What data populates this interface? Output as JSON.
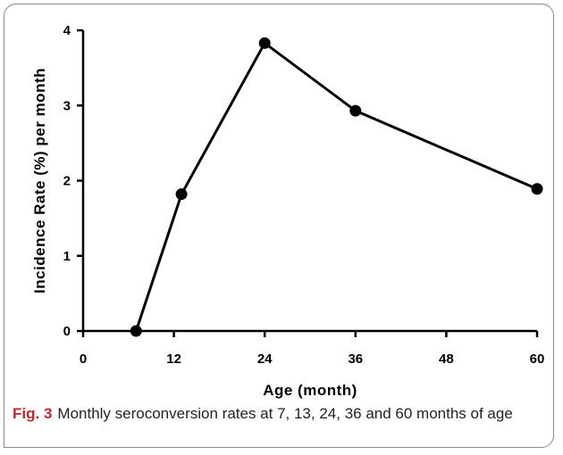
{
  "chart_data": {
    "type": "line",
    "x": [
      7,
      13,
      24,
      36,
      60
    ],
    "y": [
      0.0,
      1.82,
      3.83,
      2.93,
      1.89
    ],
    "xlabel": "Age (month)",
    "ylabel": "Incidence Rate (%) per month",
    "xlim": [
      0,
      60
    ],
    "ylim": [
      0,
      4
    ],
    "xticks": [
      0,
      12,
      24,
      36,
      48,
      60
    ],
    "yticks": [
      0,
      1,
      2,
      3,
      4
    ],
    "grid": false,
    "line_color": "#000000",
    "marker": "filled-circle"
  },
  "caption": {
    "label": "Fig. 3",
    "text": "Monthly seroconversion rates at 7, 13, 24, 36 and 60 months of age",
    "label_color": "#c0272d"
  }
}
